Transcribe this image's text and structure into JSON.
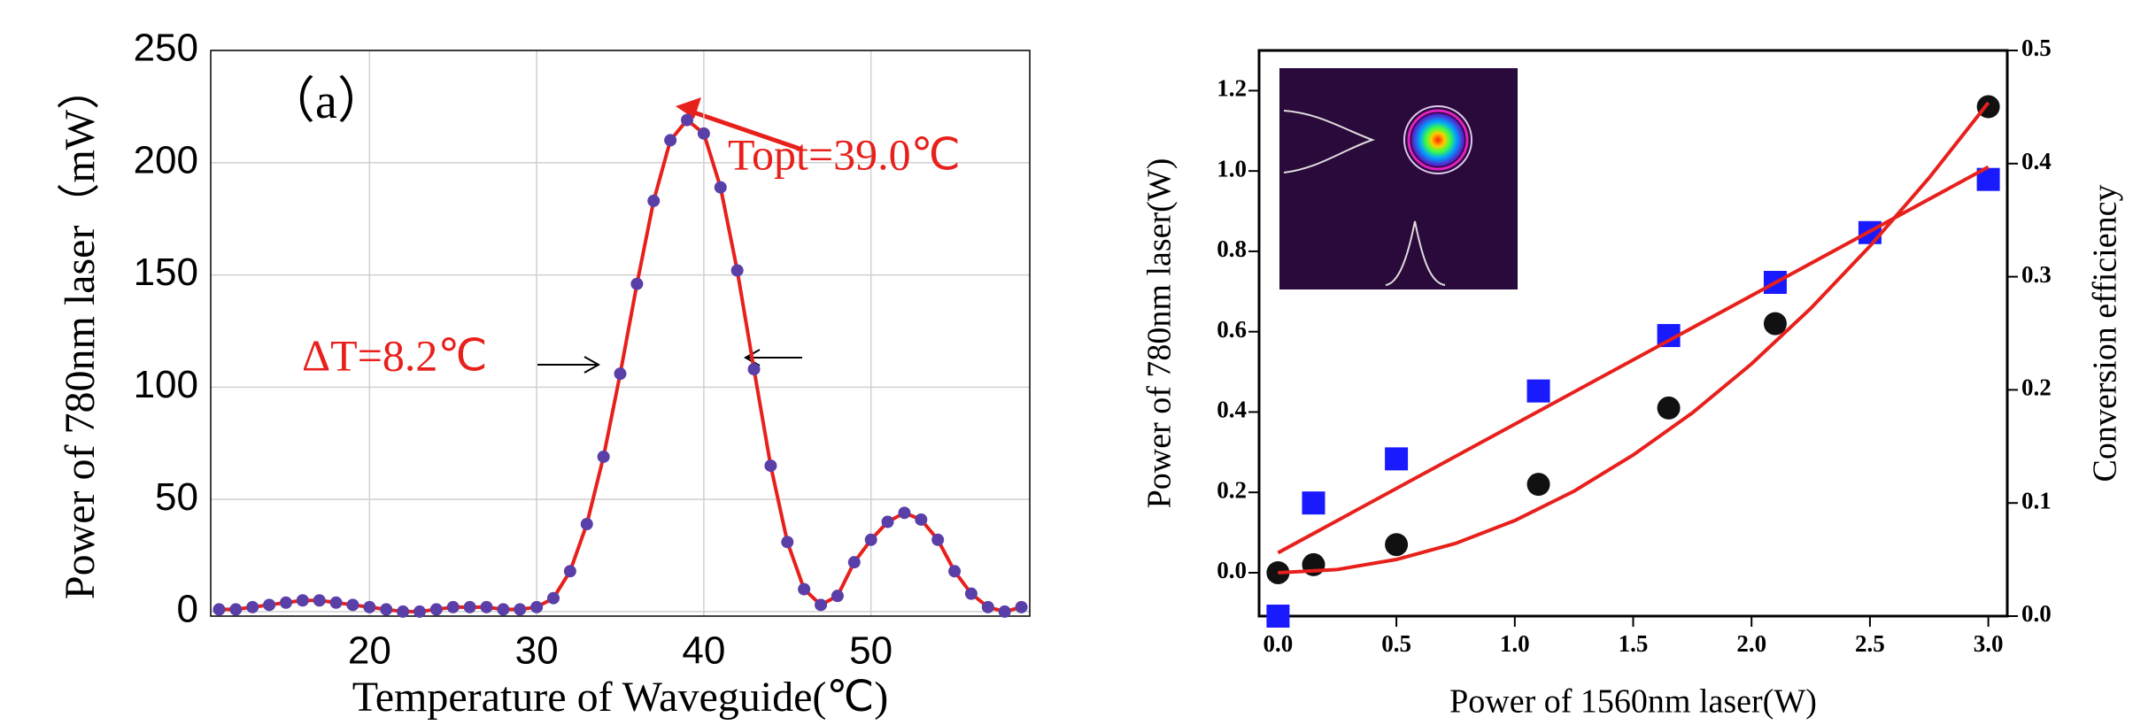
{
  "chart_data": [
    {
      "type": "scatter",
      "xlabel": "Temperature of Waveguide(℃)",
      "ylabel": "Power  of 780nm laser（mW）",
      "annotations": [
        "（a）",
        "Topt=39.0℃",
        "ΔT=8.2℃"
      ],
      "x": [
        11,
        12,
        13,
        14,
        15,
        16,
        17,
        18,
        19,
        20,
        21,
        22,
        23,
        24,
        25,
        26,
        27,
        28,
        29,
        30,
        31,
        32,
        33,
        34,
        35,
        36,
        37,
        38,
        39,
        40,
        41,
        42,
        43,
        44,
        45,
        46,
        47,
        48,
        49,
        50,
        51,
        52,
        53,
        54,
        55,
        56,
        57,
        58,
        59
      ],
      "series": [
        {
          "color": "#5b3fa8",
          "marker": "circle",
          "line_color": "#e8201c",
          "values": [
            1,
            1,
            2,
            3,
            4,
            5,
            5,
            4,
            3,
            2,
            1,
            0,
            0,
            1,
            2,
            2,
            2,
            1,
            1,
            2,
            6,
            18,
            39,
            69,
            106,
            146,
            183,
            210,
            219,
            213,
            189,
            152,
            108,
            65,
            31,
            10,
            3,
            7,
            22,
            32,
            40,
            44,
            41,
            32,
            18,
            8,
            2,
            0,
            2
          ]
        }
      ],
      "xlim": [
        10.5,
        59.5
      ],
      "xticks": [
        20,
        30,
        40,
        50
      ],
      "ylim": [
        -2,
        250
      ],
      "yticks": [
        0,
        50,
        100,
        150,
        200,
        250
      ],
      "grid": true
    },
    {
      "type": "scatter",
      "xlabel": "Power of 1560nm laser(W)",
      "ylabel": "Power of 780nm laser(W)",
      "y2label": "Conversion efficiency",
      "series": [
        {
          "color": "#111111",
          "marker": "circle",
          "x": [
            0,
            0.15,
            0.5,
            1.1,
            1.65,
            2.1,
            3.0
          ],
          "values": [
            0.0,
            0.02,
            0.07,
            0.22,
            0.41,
            0.62,
            1.16
          ]
        },
        {
          "color": "#1a1aff",
          "marker": "square",
          "axis": "y2",
          "x": [
            0,
            0.15,
            0.5,
            1.1,
            1.65,
            2.1,
            2.5,
            3.0
          ],
          "values": [
            0.0,
            0.1,
            0.139,
            0.199,
            0.248,
            0.295,
            0.339,
            0.386
          ]
        },
        {
          "color": "#e8201c",
          "marker": "none",
          "line_color": "#e8201c",
          "x": [
            0,
            0.25,
            0.5,
            0.75,
            1.0,
            1.25,
            1.5,
            1.75,
            2.0,
            2.25,
            2.5,
            2.75,
            3.0
          ],
          "values": [
            0,
            0.008,
            0.033,
            0.073,
            0.13,
            0.203,
            0.293,
            0.398,
            0.52,
            0.658,
            0.813,
            0.983,
            1.17
          ]
        },
        {
          "color": "#e8201c",
          "marker": "none",
          "line_color": "#e8201c",
          "axis": "y2",
          "x": [
            0,
            3.0
          ],
          "values": [
            0.056,
            0.397
          ]
        }
      ],
      "xlim": [
        -0.08,
        3.08
      ],
      "xticks": [
        {
          "value": 0,
          "label": "0.0"
        },
        {
          "value": 0.5,
          "label": "0.5"
        },
        {
          "value": 1,
          "label": "1.0"
        },
        {
          "value": 1.5,
          "label": "1.5"
        },
        {
          "value": 2,
          "label": "2.0"
        },
        {
          "value": 2.5,
          "label": "2.5"
        },
        {
          "value": 3,
          "label": "3.0"
        }
      ],
      "ylim": [
        -0.108,
        1.3
      ],
      "yticks": [
        {
          "value": 0,
          "label": "0.0"
        },
        {
          "value": 0.2,
          "label": "0.2"
        },
        {
          "value": 0.4,
          "label": "0.4"
        },
        {
          "value": 0.6,
          "label": "0.6"
        },
        {
          "value": 0.8,
          "label": "0.8"
        },
        {
          "value": 1,
          "label": "1.0"
        },
        {
          "value": 1.2,
          "label": "1.2"
        }
      ],
      "y2lim": [
        0,
        0.5
      ],
      "y2ticks": [
        {
          "value": 0,
          "label": "0.0"
        },
        0.1,
        0.2,
        0.3,
        0.4,
        0.5
      ],
      "grid": false
    }
  ]
}
